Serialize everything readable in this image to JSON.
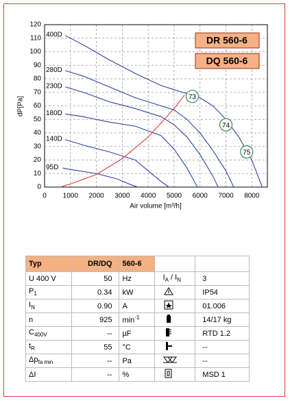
{
  "chart_data": {
    "type": "line",
    "x_label": "Air volume [m³/h]",
    "y_label": "dP[Pa]",
    "xlim": [
      0,
      8600
    ],
    "xticks": [
      0,
      1000,
      2000,
      3000,
      4000,
      5000,
      6000,
      7000,
      8000
    ],
    "ylim": [
      0,
      120
    ],
    "yticks": [
      0,
      10,
      20,
      30,
      40,
      50,
      60,
      70,
      80,
      90,
      100,
      110,
      120
    ],
    "grid": true,
    "series": [
      {
        "name": "400D",
        "color": "#2a45a0",
        "x": [
          800,
          1500,
          2500,
          3500,
          4500,
          5500,
          6000,
          6500,
          7000,
          7500,
          8000,
          8400
        ],
        "values": [
          112,
          105,
          94,
          84,
          75,
          69,
          66,
          60,
          50,
          37,
          20,
          0
        ]
      },
      {
        "name": "280D",
        "color": "#2a45a0",
        "x": [
          800,
          1500,
          2500,
          3500,
          4500,
          5000,
          5500,
          6000,
          6500,
          7000,
          7300
        ],
        "values": [
          86,
          82,
          74,
          66,
          60,
          57,
          50,
          40,
          27,
          12,
          0
        ]
      },
      {
        "name": "230D",
        "color": "#2a45a0",
        "x": [
          800,
          1500,
          2500,
          3500,
          4500,
          5000,
          5500,
          6000,
          6500,
          6700
        ],
        "values": [
          74,
          70,
          63,
          58,
          52,
          46,
          37,
          24,
          8,
          0
        ]
      },
      {
        "name": "180D",
        "color": "#2a45a0",
        "x": [
          800,
          1500,
          2500,
          3500,
          4500,
          5000,
          5500,
          5900
        ],
        "values": [
          54,
          52,
          48,
          45,
          38,
          28,
          14,
          0
        ]
      },
      {
        "name": "140D",
        "color": "#2a45a0",
        "x": [
          800,
          1500,
          2500,
          3500,
          4000,
          4500,
          4800
        ],
        "values": [
          35,
          31,
          26,
          20,
          12,
          4,
          0
        ]
      },
      {
        "name": "95D",
        "color": "#2a45a0",
        "x": [
          700,
          1000,
          2000,
          2800,
          3300,
          3600
        ],
        "values": [
          14,
          13,
          10,
          6,
          2,
          0
        ]
      }
    ],
    "system_curve": {
      "color": "#e03a3a",
      "x": [
        600,
        1000,
        2000,
        3000,
        4000,
        5000,
        5400
      ],
      "values": [
        0,
        2.3,
        9.3,
        21,
        37,
        58,
        68
      ]
    },
    "annotations": [
      {
        "text": "73",
        "x": 5700,
        "y": 67
      },
      {
        "text": "74",
        "x": 7000,
        "y": 46
      },
      {
        "text": "75",
        "x": 7800,
        "y": 26
      }
    ],
    "model_labels": [
      "DR 560-6",
      "DQ 560-6"
    ]
  },
  "table": {
    "header": [
      "Typ",
      "DR/DQ",
      "560-6"
    ],
    "rows": [
      {
        "label": [
          {
            "t": "U   400   V"
          }
        ],
        "value": "50",
        "unit": [
          {
            "t": "Hz"
          }
        ],
        "spec": [
          {
            "t": "I"
          },
          {
            "sub": "A"
          },
          {
            "t": " / I"
          },
          {
            "sub": "N"
          }
        ],
        "spec_value": "3"
      },
      {
        "label": [
          {
            "t": "P"
          },
          {
            "sub": "1"
          }
        ],
        "value": "0.34",
        "unit": [
          {
            "t": "kW"
          }
        ],
        "spec_value": "IP54"
      },
      {
        "label": [
          {
            "t": "I"
          },
          {
            "sub": "N"
          }
        ],
        "value": "0.90",
        "unit": [
          {
            "t": "A"
          }
        ],
        "spec_value": "01.006"
      },
      {
        "label": [
          {
            "t": "n"
          }
        ],
        "value": "925",
        "unit": [
          {
            "t": "min"
          },
          {
            "sup": "-1"
          }
        ],
        "spec_value": "14/17 kg"
      },
      {
        "label": [
          {
            "t": "C"
          },
          {
            "sub": "400V"
          }
        ],
        "value": "--",
        "unit": [
          {
            "t": "µF"
          }
        ],
        "spec_value": "RTD 1.2"
      },
      {
        "label": [
          {
            "t": "t"
          },
          {
            "sub": "R"
          }
        ],
        "value": "55",
        "unit": [
          {
            "t": "°C"
          }
        ],
        "spec_value": "--"
      },
      {
        "label": [
          {
            "t": "Δp"
          },
          {
            "sub": "fa min"
          }
        ],
        "value": "--",
        "unit": [
          {
            "t": "Pa"
          }
        ],
        "spec_value": "--"
      },
      {
        "label": [
          {
            "t": "ΔI"
          }
        ],
        "value": "--",
        "unit": [
          {
            "t": "%"
          }
        ],
        "spec_value": "MSD 1"
      }
    ]
  }
}
